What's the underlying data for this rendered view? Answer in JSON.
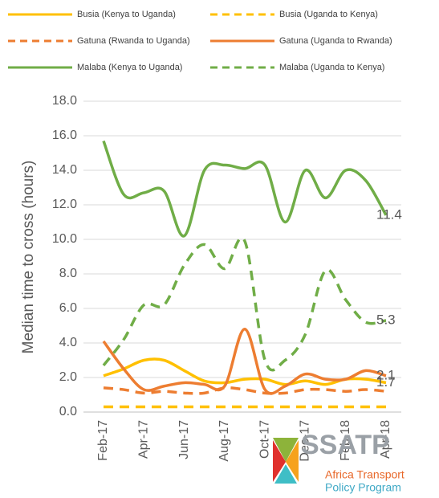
{
  "chart_data": {
    "type": "line",
    "y_label": "Median time to cross (hours)",
    "categories": [
      "Feb-17",
      null,
      "Apr-17",
      null,
      "Jun-17",
      null,
      "Aug-17",
      null,
      "Oct-17",
      null,
      "Dec-17",
      null,
      "Feb-18",
      null,
      "Apr-18"
    ],
    "ylim": [
      0,
      18
    ],
    "yticks": [
      {
        "value": 0,
        "label": "0.0"
      },
      {
        "value": 2,
        "label": "2.0"
      },
      {
        "value": 4,
        "label": "4.0"
      },
      {
        "value": 6,
        "label": "6.0"
      },
      {
        "value": 8,
        "label": "8.0"
      },
      {
        "value": 10,
        "label": "10.0"
      },
      {
        "value": 12,
        "label": "12.0"
      },
      {
        "value": 14,
        "label": "14.0"
      },
      {
        "value": 16,
        "label": "16.0"
      },
      {
        "value": 18,
        "label": "18.0"
      }
    ],
    "grid": true,
    "legend": "top",
    "series": [
      {
        "name": "Busia (Kenya to Uganda)",
        "color": "#FFC000",
        "dashed": false,
        "end_label": true,
        "values": [
          2.1,
          2.5,
          3.0,
          3.0,
          2.4,
          1.8,
          1.7,
          1.9,
          1.9,
          1.6,
          1.8,
          1.6,
          1.9,
          1.9,
          1.7
        ]
      },
      {
        "name": "Busia (Uganda to Kenya)",
        "color": "#FFC000",
        "dashed": true,
        "end_label": false,
        "values": [
          0.3,
          0.3,
          0.3,
          0.3,
          0.3,
          0.3,
          0.3,
          0.3,
          0.3,
          0.3,
          0.3,
          0.3,
          0.3,
          0.3,
          0.3
        ]
      },
      {
        "name": "Gatuna (Rwanda to Uganda)",
        "color": "#ED7D31",
        "dashed": true,
        "end_label": false,
        "values": [
          1.4,
          1.3,
          1.1,
          1.2,
          1.1,
          1.1,
          1.4,
          1.3,
          1.1,
          1.1,
          1.3,
          1.3,
          1.2,
          1.3,
          1.2
        ]
      },
      {
        "name": "Gatuna (Uganda to Rwanda)",
        "color": "#ED7D31",
        "dashed": false,
        "end_label": true,
        "values": [
          4.1,
          2.5,
          1.3,
          1.5,
          1.7,
          1.6,
          1.5,
          4.8,
          1.3,
          1.5,
          2.2,
          1.9,
          1.9,
          2.4,
          2.1
        ]
      },
      {
        "name": "Malaba (Kenya to Uganda)",
        "color": "#70AD47",
        "dashed": false,
        "end_label": true,
        "values": [
          15.7,
          12.6,
          12.7,
          12.8,
          10.2,
          14.0,
          14.3,
          14.1,
          14.3,
          11.0,
          14.0,
          12.4,
          14.0,
          13.4,
          11.4
        ]
      },
      {
        "name": "Malaba (Uganda to Kenya)",
        "color": "#70AD47",
        "dashed": true,
        "end_label": true,
        "values": [
          2.7,
          4.2,
          6.2,
          6.2,
          8.5,
          9.7,
          8.3,
          9.9,
          3.0,
          3.0,
          4.5,
          8.2,
          6.5,
          5.2,
          5.3
        ]
      }
    ]
  },
  "logo": {
    "name": "SSATP",
    "line1": "Africa Transport",
    "line2": "Policy Program"
  }
}
